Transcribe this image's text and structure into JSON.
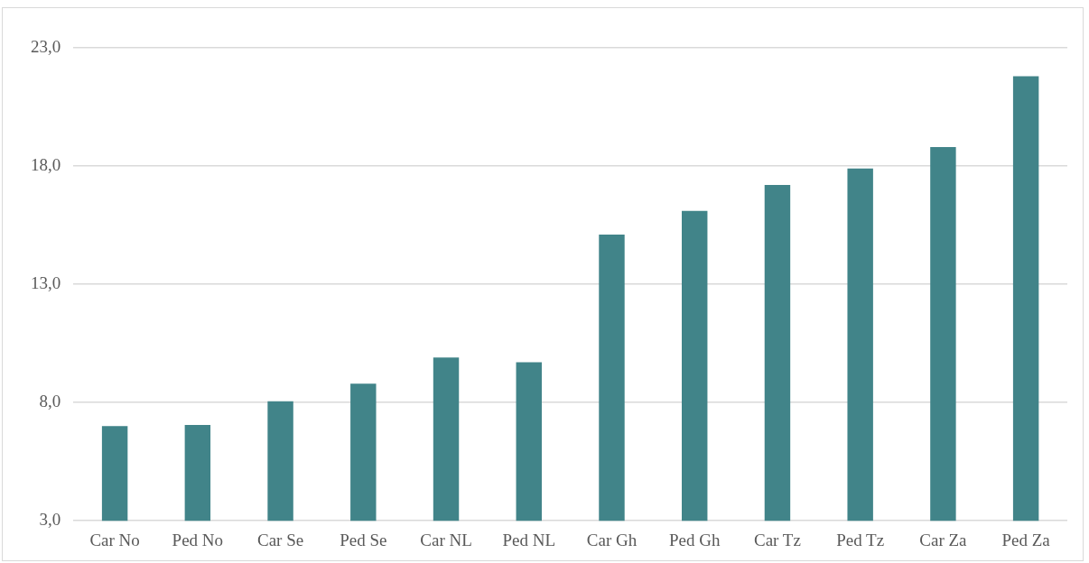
{
  "chart_data": {
    "type": "bar",
    "categories": [
      "Car No",
      "Ped No",
      "Car Se",
      "Ped Se",
      "Car NL",
      "Ped NL",
      "Car Gh",
      "Ped Gh",
      "Car Tz",
      "Ped Tz",
      "Car Za",
      "Ped Za"
    ],
    "values": [
      7.0,
      7.05,
      8.05,
      8.8,
      9.9,
      9.7,
      15.1,
      16.1,
      17.2,
      17.9,
      18.8,
      21.8
    ],
    "color": "#418489",
    "ylim": [
      3,
      23
    ],
    "yticks": [
      {
        "value": 3,
        "label": "3,0"
      },
      {
        "value": 8,
        "label": "8,0"
      },
      {
        "value": 13,
        "label": "13,0"
      },
      {
        "value": 18,
        "label": "18,0"
      },
      {
        "value": 23,
        "label": "23,0"
      }
    ],
    "grid": "y",
    "legend": false
  }
}
